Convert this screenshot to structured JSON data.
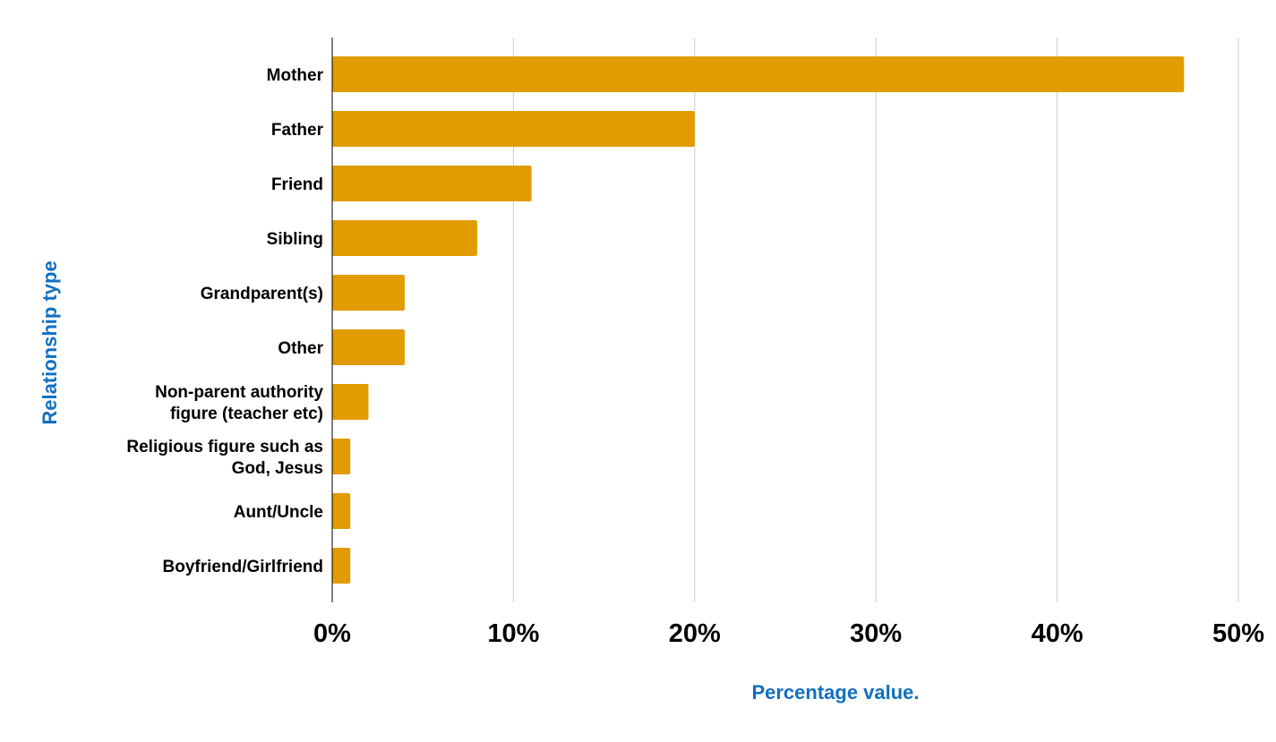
{
  "chart_data": {
    "type": "bar",
    "orientation": "horizontal",
    "title": "",
    "xlabel": "Percentage value.",
    "ylabel": "Relationship type",
    "categories": [
      "Mother",
      "Father",
      "Friend",
      "Sibling",
      "Grandparent(s)",
      "Other",
      "Non-parent authority figure (teacher etc)",
      "Religious figure such as God, Jesus",
      "Aunt/Uncle",
      "Boyfriend/Girlfriend"
    ],
    "category_lines": [
      [
        "Mother"
      ],
      [
        "Father"
      ],
      [
        "Friend"
      ],
      [
        "Sibling"
      ],
      [
        "Grandparent(s)"
      ],
      [
        "Other"
      ],
      [
        "Non-parent authority",
        "figure (teacher etc)"
      ],
      [
        "Religious figure such as",
        "God, Jesus"
      ],
      [
        "Aunt/Uncle"
      ],
      [
        "Boyfriend/Girlfriend"
      ]
    ],
    "values": [
      47,
      20,
      11,
      8,
      4,
      4,
      2,
      1,
      1,
      1
    ],
    "xlim": [
      0,
      50
    ],
    "xticks": [
      0,
      10,
      20,
      30,
      40,
      50
    ],
    "xtick_labels": [
      "0%",
      "10%",
      "20%",
      "30%",
      "40%",
      "50%"
    ],
    "grid": true,
    "legend": "none",
    "colors": {
      "bar": "#e09c00",
      "axis_title": "#1170c0",
      "grid": "#cccccc",
      "axis": "#000000"
    }
  }
}
